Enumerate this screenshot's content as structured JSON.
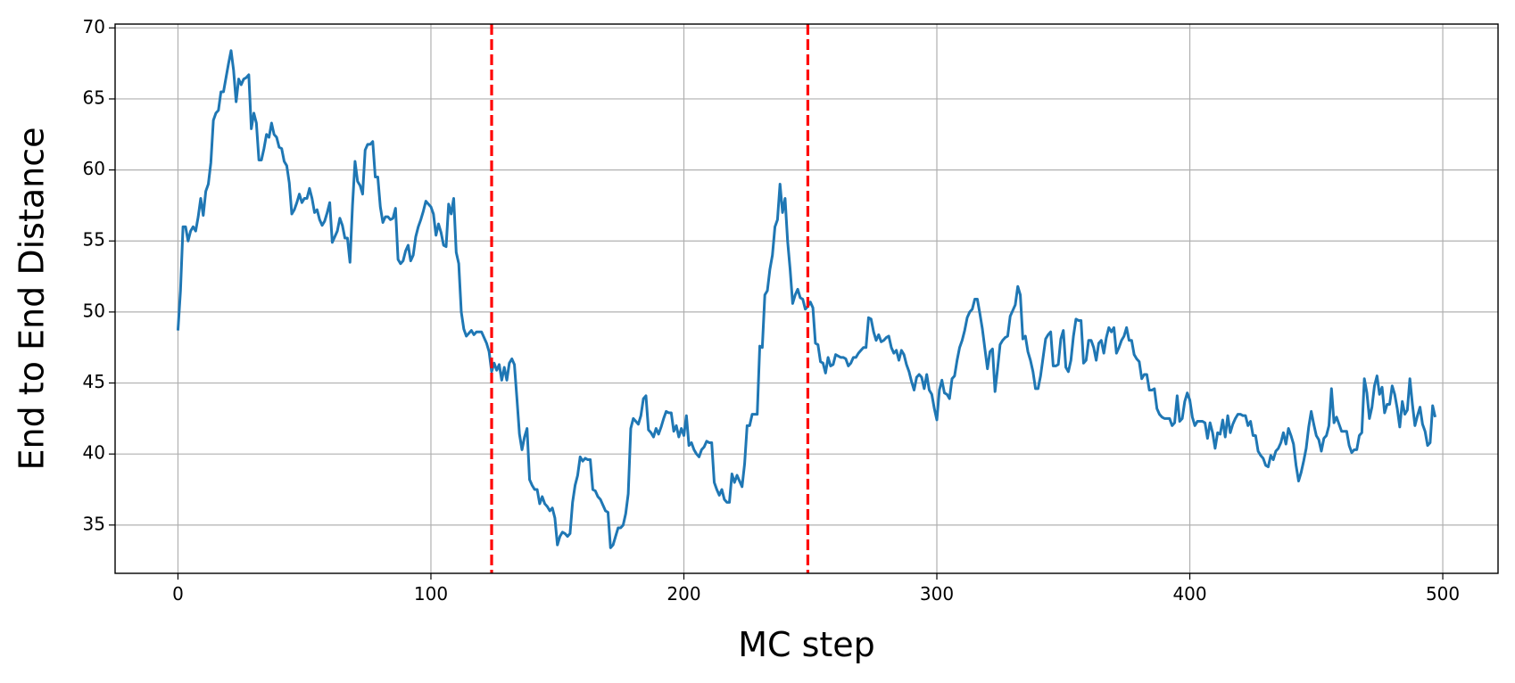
{
  "chart_data": {
    "type": "line",
    "x_label": "MC step",
    "y_label": "End to End Distance",
    "xlim": [
      -24.85,
      521.85
    ],
    "ylim": [
      31.6,
      70.27
    ],
    "xticks": [
      0,
      100,
      200,
      300,
      400,
      500
    ],
    "yticks": [
      35,
      40,
      45,
      50,
      55,
      60,
      65,
      70
    ],
    "grid": true,
    "vlines": {
      "values": [
        124,
        249
      ],
      "color": "#ff0000",
      "style": "dashed"
    },
    "series": [
      {
        "color": "#1f77b4",
        "x": [
          0,
          1,
          2,
          3,
          4,
          5,
          6,
          7,
          8,
          9,
          10,
          11,
          12,
          13,
          14,
          15,
          16,
          17,
          18,
          19,
          20,
          21,
          22,
          23,
          24,
          25,
          26,
          27,
          28,
          29,
          30,
          31,
          32,
          33,
          34,
          35,
          36,
          37,
          38,
          39,
          40,
          41,
          42,
          43,
          44,
          45,
          46,
          47,
          48,
          49,
          50,
          51,
          52,
          53,
          54,
          55,
          56,
          57,
          58,
          59,
          60,
          61,
          62,
          63,
          64,
          65,
          66,
          67,
          68,
          69,
          70,
          71,
          72,
          73,
          74,
          75,
          76,
          77,
          78,
          79,
          80,
          81,
          82,
          83,
          84,
          85,
          86,
          87,
          88,
          89,
          90,
          91,
          92,
          93,
          94,
          95,
          96,
          97,
          98,
          99,
          100,
          101,
          102,
          103,
          104,
          105,
          106,
          107,
          108,
          109,
          110,
          111,
          112,
          113,
          114,
          115,
          116,
          117,
          118,
          119,
          120,
          121,
          122,
          123,
          124,
          125,
          126,
          127,
          128,
          129,
          130,
          131,
          132,
          133,
          134,
          135,
          136,
          137,
          138,
          139,
          140,
          141,
          142,
          143,
          144,
          145,
          146,
          147,
          148,
          149,
          150,
          151,
          152,
          153,
          154,
          155,
          156,
          157,
          158,
          159,
          160,
          161,
          162,
          163,
          164,
          165,
          166,
          167,
          168,
          169,
          170,
          171,
          172,
          173,
          174,
          175,
          176,
          177,
          178,
          179,
          180,
          181,
          182,
          183,
          184,
          185,
          186,
          187,
          188,
          189,
          190,
          191,
          192,
          193,
          194,
          195,
          196,
          197,
          198,
          199,
          200,
          201,
          202,
          203,
          204,
          205,
          206,
          207,
          208,
          209,
          210,
          211,
          212,
          213,
          214,
          215,
          216,
          217,
          218,
          219,
          220,
          221,
          222,
          223,
          224,
          225,
          226,
          227,
          228,
          229,
          230,
          231,
          232,
          233,
          234,
          235,
          236,
          237,
          238,
          239,
          240,
          241,
          242,
          243,
          244,
          245,
          246,
          247,
          248,
          249,
          250,
          251,
          252,
          253,
          254,
          255,
          256,
          257,
          258,
          259,
          260,
          261,
          262,
          263,
          264,
          265,
          266,
          267,
          268,
          269,
          270,
          271,
          272,
          273,
          274,
          275,
          276,
          277,
          278,
          279,
          280,
          281,
          282,
          283,
          284,
          285,
          286,
          287,
          288,
          289,
          290,
          291,
          292,
          293,
          294,
          295,
          296,
          297,
          298,
          299,
          300,
          301,
          302,
          303,
          304,
          305,
          306,
          307,
          308,
          309,
          310,
          311,
          312,
          313,
          314,
          315,
          316,
          317,
          318,
          319,
          320,
          321,
          322,
          323,
          324,
          325,
          326,
          327,
          328,
          329,
          330,
          331,
          332,
          333,
          334,
          335,
          336,
          337,
          338,
          339,
          340,
          341,
          342,
          343,
          344,
          345,
          346,
          347,
          348,
          349,
          350,
          351,
          352,
          353,
          354,
          355,
          356,
          357,
          358,
          359,
          360,
          361,
          362,
          363,
          364,
          365,
          366,
          367,
          368,
          369,
          370,
          371,
          372,
          373,
          374,
          375,
          376,
          377,
          378,
          379,
          380,
          381,
          382,
          383,
          384,
          385,
          386,
          387,
          388,
          389,
          390,
          391,
          392,
          393,
          394,
          395,
          396,
          397,
          398,
          399,
          400,
          401,
          402,
          403,
          404,
          405,
          406,
          407,
          408,
          409,
          410,
          411,
          412,
          413,
          414,
          415,
          416,
          417,
          418,
          419,
          420,
          421,
          422,
          423,
          424,
          425,
          426,
          427,
          428,
          429,
          430,
          431,
          432,
          433,
          434,
          435,
          436,
          437,
          438,
          439,
          440,
          441,
          442,
          443,
          444,
          445,
          446,
          447,
          448,
          449,
          450,
          451,
          452,
          453,
          454,
          455,
          456,
          457,
          458,
          459,
          460,
          461,
          462,
          463,
          464,
          465,
          466,
          467,
          468,
          469,
          470,
          471,
          472,
          473,
          474,
          475,
          476,
          477,
          478,
          479,
          480,
          481,
          482,
          483,
          484,
          485,
          486,
          487,
          488,
          489,
          490,
          491,
          492,
          493,
          494,
          495,
          496,
          497
        ],
        "values": [
          48.7,
          51.5,
          56,
          56,
          55,
          55.7,
          56,
          55.7,
          56.7,
          58,
          56.8,
          58.5,
          59,
          60.5,
          63.5,
          64,
          64.2,
          65.5,
          65.5,
          66.5,
          67.5,
          68.4,
          67,
          64.8,
          66.4,
          66,
          66.4,
          66.5,
          66.7,
          62.9,
          64,
          63.3,
          60.7,
          60.7,
          61.5,
          62.5,
          62.3,
          63.3,
          62.5,
          62.3,
          61.6,
          61.5,
          60.6,
          60.3,
          59.1,
          56.9,
          57.2,
          57.7,
          58.3,
          57.7,
          58,
          58,
          58.7,
          58,
          57,
          57.2,
          56.5,
          56.1,
          56.4,
          57,
          57.7,
          54.9,
          55.3,
          55.7,
          56.6,
          56.1,
          55.2,
          55.2,
          53.5,
          57.5,
          60.6,
          59.2,
          58.9,
          58.3,
          61.4,
          61.8,
          61.8,
          62,
          59.5,
          59.5,
          57.4,
          56.3,
          56.7,
          56.7,
          56.5,
          56.6,
          57.3,
          53.7,
          53.4,
          53.6,
          54.3,
          54.7,
          53.6,
          54,
          55.3,
          56,
          56.5,
          57.1,
          57.8,
          57.6,
          57.4,
          56.9,
          55.4,
          56.2,
          55.6,
          54.7,
          54.6,
          57.6,
          56.9,
          58,
          54.2,
          53.4,
          50,
          48.8,
          48.3,
          48.5,
          48.7,
          48.4,
          48.6,
          48.6,
          48.6,
          48.2,
          47.8,
          47.2,
          45.8,
          46.4,
          45.9,
          46.3,
          45.2,
          46.1,
          45.2,
          46.4,
          46.7,
          46.3,
          43.9,
          41.4,
          40.3,
          41.2,
          41.8,
          38.2,
          37.8,
          37.5,
          37.5,
          36.5,
          37,
          36.5,
          36.3,
          36,
          36.2,
          35.5,
          33.6,
          34.2,
          34.5,
          34.4,
          34.2,
          34.4,
          36.6,
          37.8,
          38.5,
          39.8,
          39.5,
          39.7,
          39.6,
          39.6,
          37.5,
          37.4,
          37,
          36.8,
          36.4,
          36,
          35.9,
          33.4,
          33.6,
          34.2,
          34.8,
          34.8,
          35,
          35.8,
          37.2,
          41.8,
          42.5,
          42.3,
          42.1,
          42.7,
          43.9,
          44.1,
          41.7,
          41.5,
          41.2,
          41.8,
          41.4,
          41.9,
          42.5,
          43,
          42.9,
          42.9,
          41.6,
          42,
          41.2,
          41.8,
          41.3,
          42.7,
          40.6,
          40.8,
          40.3,
          40,
          39.8,
          40.3,
          40.5,
          40.9,
          40.8,
          40.8,
          38,
          37.5,
          37.1,
          37.5,
          36.8,
          36.6,
          36.6,
          38.6,
          38,
          38.5,
          38.1,
          37.7,
          39.3,
          42,
          42,
          42.8,
          42.8,
          42.8,
          47.6,
          47.5,
          51.2,
          51.5,
          53,
          54,
          56,
          56.5,
          59,
          57,
          58,
          55,
          53,
          50.6,
          51.2,
          51.6,
          51,
          50.9,
          50.2,
          50.4,
          50.7,
          50.3,
          47.8,
          47.7,
          46.5,
          46.4,
          45.7,
          46.8,
          46.2,
          46.3,
          47,
          46.9,
          46.8,
          46.8,
          46.7,
          46.2,
          46.4,
          46.8,
          46.8,
          47.1,
          47.3,
          47.5,
          47.5,
          49.6,
          49.5,
          48.6,
          48,
          48.4,
          47.9,
          48,
          48.2,
          48.3,
          47.5,
          47.1,
          47.3,
          46.6,
          47.3,
          47,
          46.3,
          45.8,
          45.1,
          44.5,
          45.4,
          45.6,
          45.4,
          44.6,
          45.6,
          44.5,
          44.2,
          43.2,
          42.4,
          44.5,
          45.2,
          44.3,
          44.2,
          43.9,
          45.3,
          45.5,
          46.6,
          47.5,
          48,
          48.7,
          49.6,
          50,
          50.2,
          50.9,
          50.9,
          49.9,
          48.8,
          47.4,
          46,
          47.2,
          47.4,
          44.4,
          46,
          47.7,
          48,
          48.2,
          48.3,
          49.7,
          50.1,
          50.5,
          51.8,
          51.2,
          48.1,
          48.3,
          47.2,
          46.6,
          45.8,
          44.6,
          44.6,
          45.5,
          46.8,
          48.1,
          48.4,
          48.6,
          46.2,
          46.2,
          46.3,
          48.1,
          48.7,
          46.1,
          45.8,
          46.6,
          48.3,
          49.5,
          49.4,
          49.4,
          46.4,
          46.6,
          48,
          48,
          47.5,
          46.6,
          47.8,
          48,
          47.1,
          48.2,
          48.9,
          48.6,
          48.9,
          47.1,
          47.5,
          48,
          48.3,
          48.9,
          48,
          48,
          47,
          46.7,
          46.5,
          45.3,
          45.6,
          45.6,
          44.5,
          44.5,
          44.6,
          43.2,
          42.8,
          42.6,
          42.5,
          42.5,
          42.5,
          42,
          42.2,
          44.1,
          42.3,
          42.5,
          43.7,
          44.3,
          43.8,
          42.6,
          42,
          42.3,
          42.3,
          42.3,
          42.2,
          41.1,
          42.2,
          41.5,
          40.4,
          41.5,
          41.4,
          42.4,
          41.2,
          42.7,
          41.5,
          42.1,
          42.5,
          42.8,
          42.8,
          42.7,
          42.7,
          42,
          42.3,
          41.3,
          41.3,
          40.2,
          39.9,
          39.7,
          39.2,
          39.1,
          39.9,
          39.6,
          40.2,
          40.4,
          40.8,
          41.5,
          40.7,
          41.8,
          41.3,
          40.7,
          39.2,
          38.1,
          38.7,
          39.5,
          40.4,
          41.9,
          43,
          42.1,
          41.3,
          41,
          40.2,
          41.1,
          41.3,
          42,
          44.6,
          42.2,
          42.6,
          42.1,
          41.6,
          41.6,
          41.6,
          40.6,
          40.1,
          40.3,
          40.3,
          41.3,
          41.5,
          45.3,
          44.3,
          42.5,
          43.3,
          44.8,
          45.5,
          44.2,
          44.7,
          42.9,
          43.5,
          43.5,
          44.8,
          44.2,
          43.2,
          41.9,
          43.7,
          42.8,
          43.1,
          45.3,
          43.5,
          42,
          42.7,
          43.3,
          42.1,
          41.6,
          40.6,
          40.8,
          43.4,
          42.6
        ]
      }
    ]
  }
}
